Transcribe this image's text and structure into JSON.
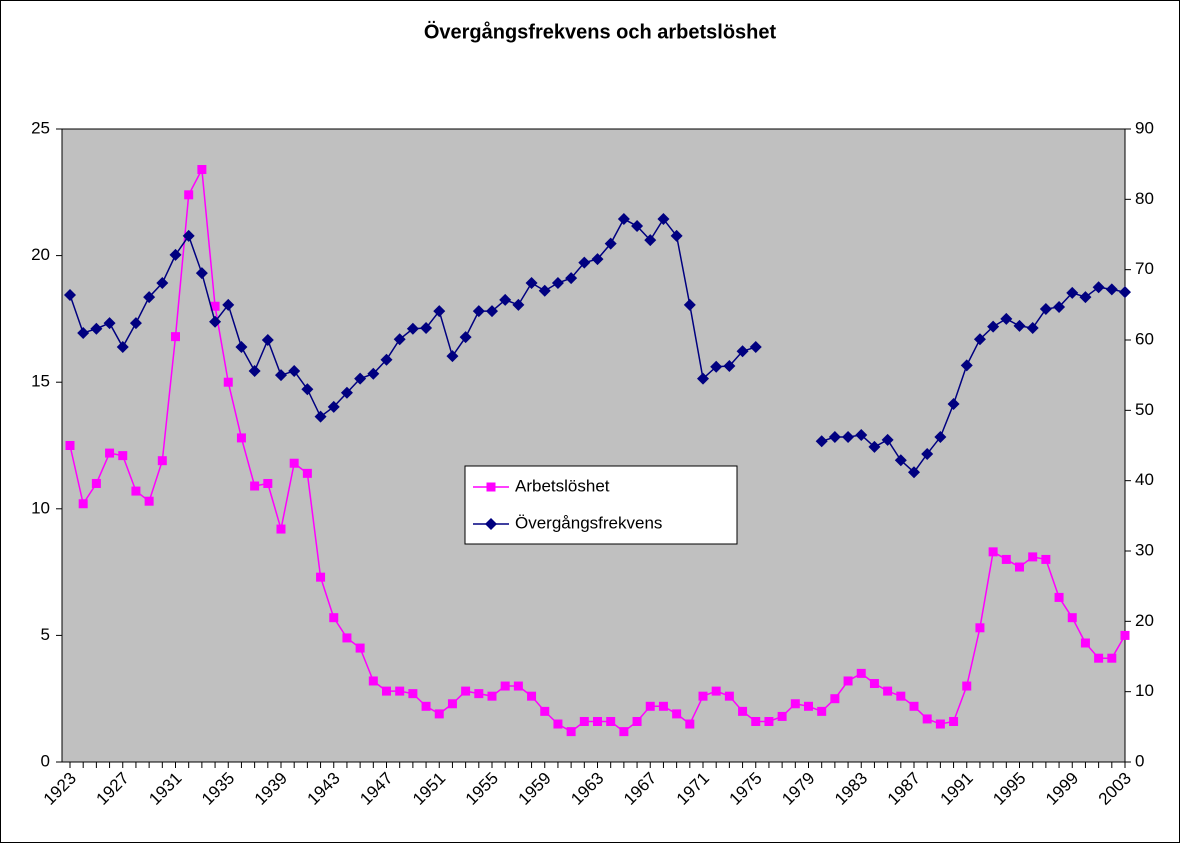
{
  "chart_data": {
    "type": "line",
    "title": "Övergångsfrekvens och arbetslöshet",
    "categories": [
      "1923",
      null,
      null,
      null,
      "1927",
      null,
      null,
      null,
      "1931",
      null,
      null,
      null,
      "1935",
      null,
      null,
      null,
      "1939",
      null,
      null,
      null,
      "1943",
      null,
      null,
      null,
      "1947",
      null,
      null,
      null,
      "1951",
      null,
      null,
      null,
      "1955",
      null,
      null,
      null,
      "1959",
      null,
      null,
      null,
      "1963",
      null,
      null,
      null,
      "1967",
      null,
      null,
      null,
      "1971",
      null,
      null,
      null,
      "1975",
      null,
      null,
      null,
      "1979",
      null,
      null,
      null,
      "1983",
      null,
      null,
      null,
      "1987",
      null,
      null,
      null,
      "1991",
      null,
      null,
      null,
      "1995",
      null,
      null,
      null,
      "1999",
      null,
      null,
      null,
      "2003"
    ],
    "series": [
      {
        "name": "Arbetslöshet",
        "color": "#ff00ff",
        "marker": "square",
        "axis": "y",
        "values": [
          12.5,
          10.2,
          11.0,
          12.2,
          12.1,
          10.7,
          10.3,
          11.9,
          16.8,
          22.4,
          23.4,
          18.0,
          15.0,
          12.8,
          10.9,
          11.0,
          9.2,
          11.8,
          11.4,
          7.3,
          5.7,
          4.9,
          4.5,
          3.2,
          2.8,
          2.8,
          2.7,
          2.2,
          1.9,
          2.3,
          2.8,
          2.7,
          2.6,
          3.0,
          3.0,
          2.6,
          2.0,
          1.5,
          1.2,
          1.6,
          1.6,
          1.6,
          1.2,
          1.6,
          2.2,
          2.2,
          1.9,
          1.5,
          2.6,
          2.8,
          2.6,
          2.0,
          1.6,
          1.6,
          1.8,
          2.3,
          2.2,
          2.0,
          2.5,
          3.2,
          3.5,
          3.1,
          2.8,
          2.6,
          2.2,
          1.7,
          1.5,
          1.6,
          3.0,
          5.3,
          8.3,
          8.0,
          7.7,
          8.1,
          8.0,
          6.5,
          5.7,
          4.7,
          4.1,
          4.1,
          5.0
        ]
      },
      {
        "name": "Övergångsfrekvens",
        "color": "#000080",
        "marker": "diamond",
        "axis": "y2",
        "values": [
          66.4,
          61.0,
          61.6,
          62.4,
          59.0,
          62.4,
          66.1,
          68.1,
          72.1,
          74.8,
          69.5,
          62.6,
          65.0,
          59.0,
          55.6,
          60.0,
          55.0,
          55.6,
          53.0,
          49.1,
          50.5,
          52.5,
          54.5,
          55.2,
          57.2,
          60.1,
          61.6,
          61.7,
          64.1,
          57.7,
          60.4,
          64.1,
          64.1,
          65.7,
          65.0,
          68.1,
          67.0,
          68.1,
          68.8,
          71.0,
          71.5,
          73.7,
          77.2,
          76.2,
          74.2,
          77.2,
          74.8,
          65.0,
          54.5,
          56.2,
          56.3,
          58.4,
          59.0,
          null,
          null,
          null,
          null,
          45.6,
          46.2,
          46.2,
          46.5,
          44.8,
          45.8,
          42.9,
          41.2,
          43.8,
          46.2,
          50.9,
          56.4,
          60.1,
          61.9,
          63.0,
          62.0,
          61.7,
          64.4,
          64.7,
          66.7,
          66.1,
          67.5,
          67.2,
          66.8
        ]
      }
    ],
    "ylim": [
      0,
      25
    ],
    "yticks": [
      0,
      5,
      10,
      15,
      20,
      25
    ],
    "y2lim": [
      0,
      90
    ],
    "y2ticks": [
      0,
      10,
      20,
      30,
      40,
      50,
      60,
      70,
      80,
      90
    ],
    "legend": "center",
    "plot_background": "#c0c0c0"
  }
}
